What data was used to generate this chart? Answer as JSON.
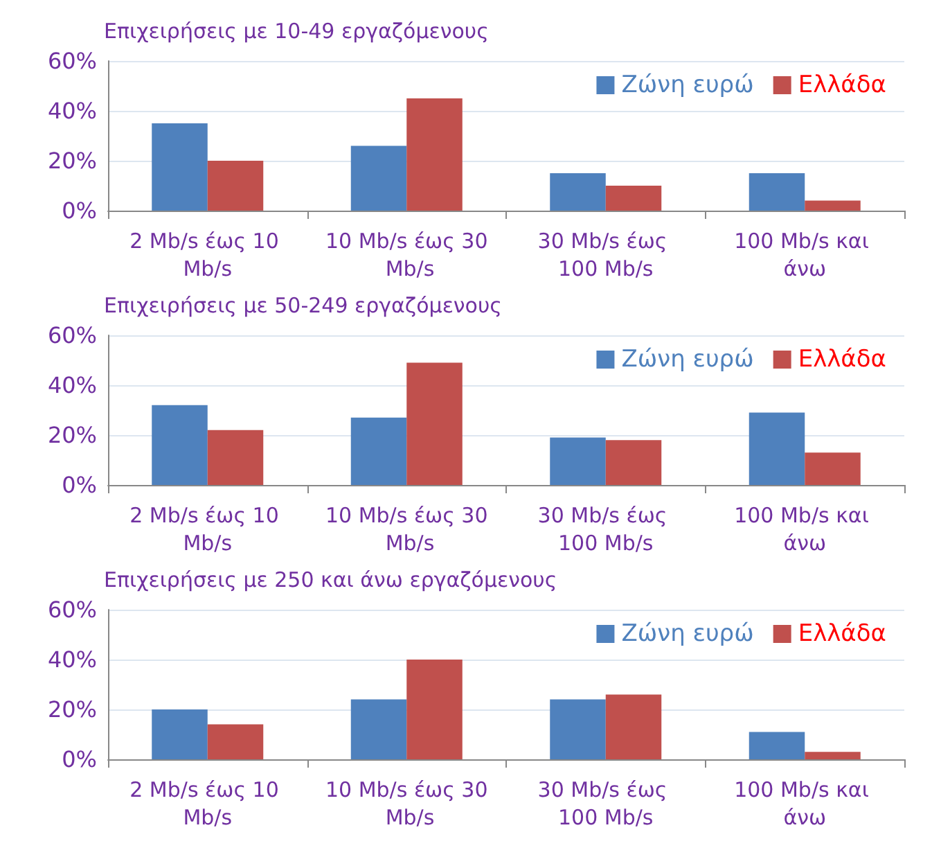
{
  "chart_data": [
    {
      "type": "bar",
      "title": "Επιχειρήσεις με 10-49 εργαζόμενους",
      "categories": [
        "2 Mb/s έως 10 Mb/s",
        "10 Mb/s έως 30 Mb/s",
        "30 Mb/s έως 100 Mb/s",
        "100 Mb/s και άνω"
      ],
      "series": [
        {
          "name": "Ζώνη ευρώ",
          "color": "#4f81bd",
          "values": [
            35,
            26,
            15,
            15
          ]
        },
        {
          "name": "Ελλάδα",
          "color": "#c0504d",
          "values": [
            20,
            45,
            10,
            4
          ]
        }
      ],
      "ylim": [
        0,
        60
      ],
      "yticks": [
        {
          "value": 0,
          "label": "0%"
        },
        {
          "value": 20,
          "label": "20%"
        },
        {
          "value": 40,
          "label": "40%"
        },
        {
          "value": 60,
          "label": "60%"
        }
      ],
      "grid": "y",
      "legend": "top right"
    },
    {
      "type": "bar",
      "title": "Επιχειρήσεις με 50-249 εργαζόμενους",
      "categories": [
        "2 Mb/s έως 10 Mb/s",
        "10 Mb/s έως 30 Mb/s",
        "30 Mb/s έως 100 Mb/s",
        "100 Mb/s και άνω"
      ],
      "series": [
        {
          "name": "Ζώνη ευρώ",
          "color": "#4f81bd",
          "values": [
            32,
            27,
            19,
            29
          ]
        },
        {
          "name": "Ελλάδα",
          "color": "#c0504d",
          "values": [
            22,
            49,
            18,
            13
          ]
        }
      ],
      "ylim": [
        0,
        60
      ],
      "yticks": [
        {
          "value": 0,
          "label": "0%"
        },
        {
          "value": 20,
          "label": "20%"
        },
        {
          "value": 40,
          "label": "40%"
        },
        {
          "value": 60,
          "label": "60%"
        }
      ],
      "grid": "y",
      "legend": "top right"
    },
    {
      "type": "bar",
      "title": "Επιχειρήσεις με 250 και άνω εργαζόμενους",
      "categories": [
        "2 Mb/s έως 10 Mb/s",
        "10 Mb/s έως 30 Mb/s",
        "30 Mb/s έως 100 Mb/s",
        "100 Mb/s και άνω"
      ],
      "series": [
        {
          "name": "Ζώνη ευρώ",
          "color": "#4f81bd",
          "values": [
            20,
            24,
            24,
            11
          ]
        },
        {
          "name": "Ελλάδα",
          "color": "#c0504d",
          "values": [
            14,
            40,
            26,
            3
          ]
        }
      ],
      "ylim": [
        0,
        60
      ],
      "yticks": [
        {
          "value": 0,
          "label": "0%"
        },
        {
          "value": 20,
          "label": "20%"
        },
        {
          "value": 40,
          "label": "40%"
        },
        {
          "value": 60,
          "label": "60%"
        }
      ],
      "grid": "y",
      "legend": "top right"
    }
  ]
}
